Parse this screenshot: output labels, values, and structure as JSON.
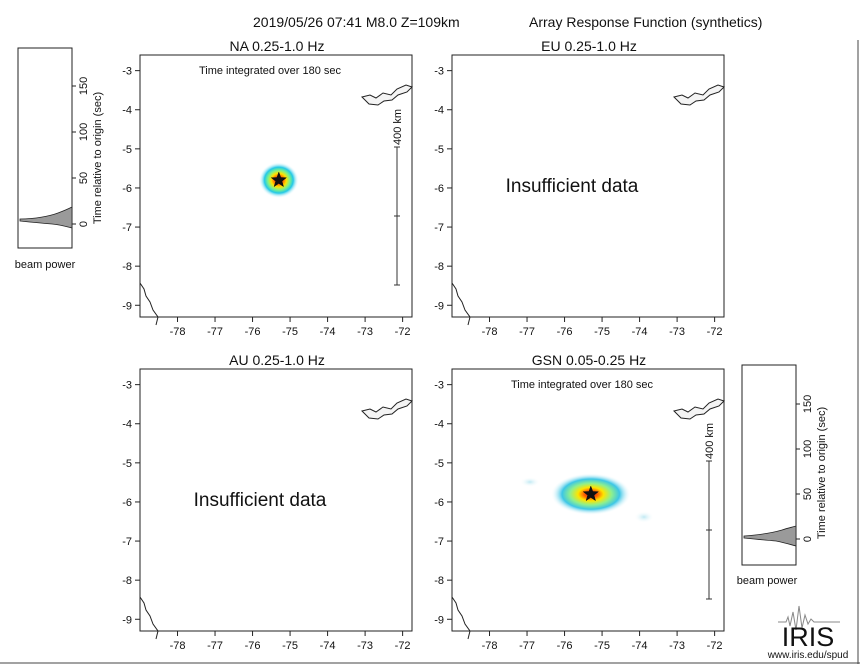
{
  "header": {
    "event": "2019/05/26 07:41  M8.0  Z=109km",
    "product": "Array Response Function (synthetics)"
  },
  "beam_insets": [
    {
      "ylabel": "Time relative to origin (sec)",
      "ticks": [
        "0",
        "50",
        "100",
        "150"
      ],
      "xlabel": "beam power"
    },
    {
      "ylabel": "Time relative to origin (sec)",
      "ticks": [
        "0",
        "50",
        "100",
        "150"
      ],
      "xlabel": "beam power"
    }
  ],
  "scale_bar": {
    "label": "400 km"
  },
  "logo": {
    "text": "IRIS",
    "url": "www.iris.edu/spud"
  },
  "chart_data": [
    {
      "type": "heatmap",
      "title": "NA  0.25-1.0 Hz",
      "note": "Time integrated over 180 sec",
      "xlim": [
        -79,
        -71.75
      ],
      "ylim": [
        -9.3,
        -2.6
      ],
      "xticks": [
        -78,
        -77,
        -76,
        -75,
        -74,
        -73,
        -72
      ],
      "yticks": [
        -3,
        -4,
        -5,
        -6,
        -7,
        -8,
        -9
      ],
      "peak": {
        "x": -75.3,
        "y": -5.8
      },
      "message": "",
      "grid": false
    },
    {
      "type": "heatmap",
      "title": "EU  0.25-1.0 Hz",
      "note": "",
      "xlim": [
        -79,
        -71.75
      ],
      "ylim": [
        -9.3,
        -2.6
      ],
      "xticks": [
        -78,
        -77,
        -76,
        -75,
        -74,
        -73,
        -72
      ],
      "yticks": [
        -3,
        -4,
        -5,
        -6,
        -7,
        -8,
        -9
      ],
      "peak": null,
      "message": "Insufficient data",
      "grid": false
    },
    {
      "type": "heatmap",
      "title": "AU  0.25-1.0 Hz",
      "note": "",
      "xlim": [
        -79,
        -71.75
      ],
      "ylim": [
        -9.3,
        -2.6
      ],
      "xticks": [
        -78,
        -77,
        -76,
        -75,
        -74,
        -73,
        -72
      ],
      "yticks": [
        -3,
        -4,
        -5,
        -6,
        -7,
        -8,
        -9
      ],
      "peak": null,
      "message": "Insufficient data",
      "grid": false
    },
    {
      "type": "heatmap",
      "title": "GSN  0.05-0.25 Hz",
      "note": "Time integrated over 180 sec",
      "xlim": [
        -79,
        -71.75
      ],
      "ylim": [
        -9.3,
        -2.6
      ],
      "xticks": [
        -78,
        -77,
        -76,
        -75,
        -74,
        -73,
        -72
      ],
      "yticks": [
        -3,
        -4,
        -5,
        -6,
        -7,
        -8,
        -9
      ],
      "peak": {
        "x": -75.3,
        "y": -5.8
      },
      "message": "",
      "grid": false
    }
  ]
}
